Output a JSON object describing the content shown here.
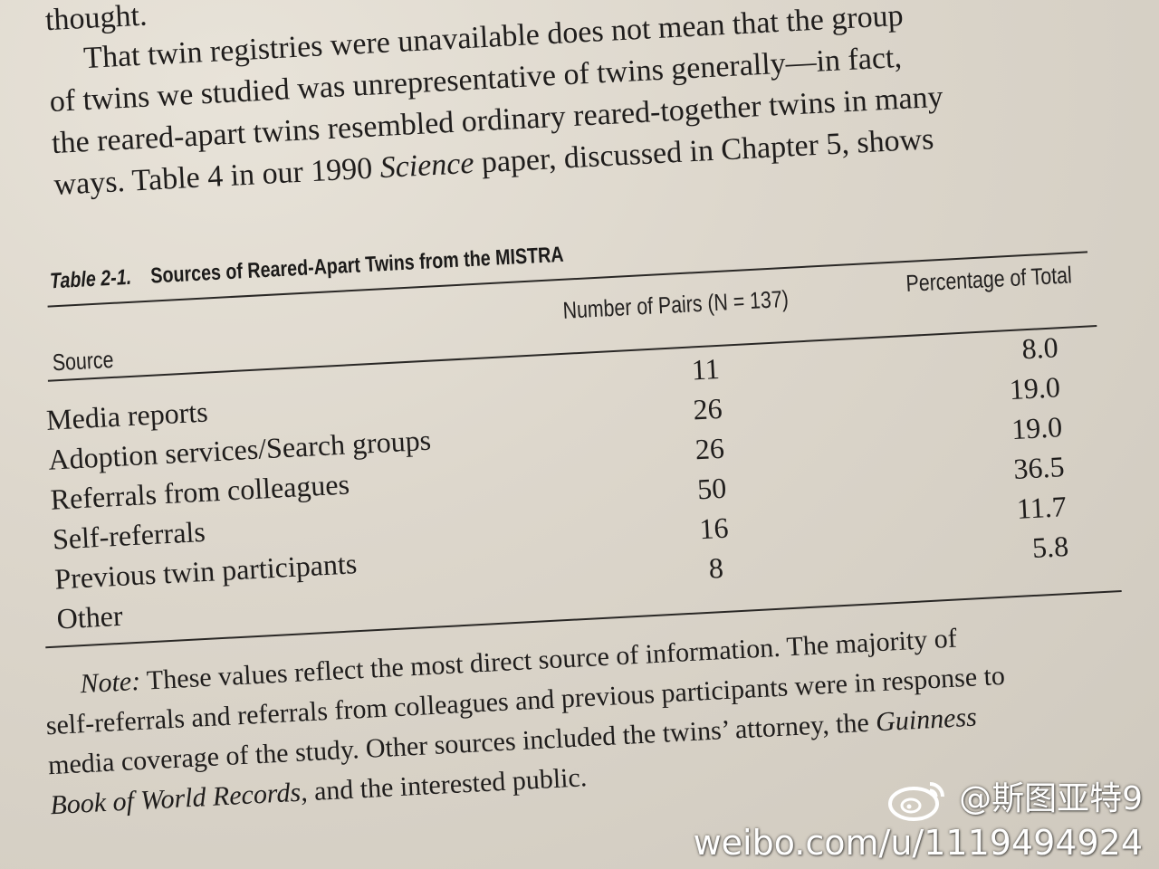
{
  "text_top": {
    "line1": "thought.",
    "line2": "That twin registries were unavailable does not mean that the group",
    "line3": "of twins we studied was unrepresentative of twins generally—in fact,",
    "line4": "the reared-apart twins resembled ordinary reared-together twins in many",
    "line5_pre": "ways. Table 4 in our 1990 ",
    "line5_em": "Science",
    "line5_post": " paper, discussed in Chapter 5, shows"
  },
  "table": {
    "number": "Table 2-1.",
    "title": "Sources of Reared-Apart Twins from the MISTRA",
    "headers": {
      "source": "Source",
      "pairs": "Number of Pairs (N = 137)",
      "percentage": "Percentage of Total"
    },
    "rows": [
      {
        "source": "Media reports",
        "pairs": "11",
        "percentage": "8.0"
      },
      {
        "source": "Adoption services/Search groups",
        "pairs": "26",
        "percentage": "19.0"
      },
      {
        "source": "Referrals from colleagues",
        "pairs": "26",
        "percentage": "19.0"
      },
      {
        "source": "Self-referrals",
        "pairs": "50",
        "percentage": "36.5"
      },
      {
        "source": "Previous twin participants",
        "pairs": "16",
        "percentage": "11.7"
      },
      {
        "source": "Other",
        "pairs": "8",
        "percentage": "5.8"
      }
    ]
  },
  "note": {
    "label": "Note:",
    "line1": " These values reflect the most direct source of information. The majority of",
    "line2": "self-referrals and referrals from colleagues and previous participants were in response to",
    "line3_pre": "media coverage of the study. Other sources included the twins’ attorney, the ",
    "line3_em": "Guinness",
    "line4_em": "Book of World Records,",
    "line4_post": " and the interested public."
  },
  "watermark": {
    "handle": "@斯图亚特9",
    "url": "weibo.com/u/1119494924"
  }
}
